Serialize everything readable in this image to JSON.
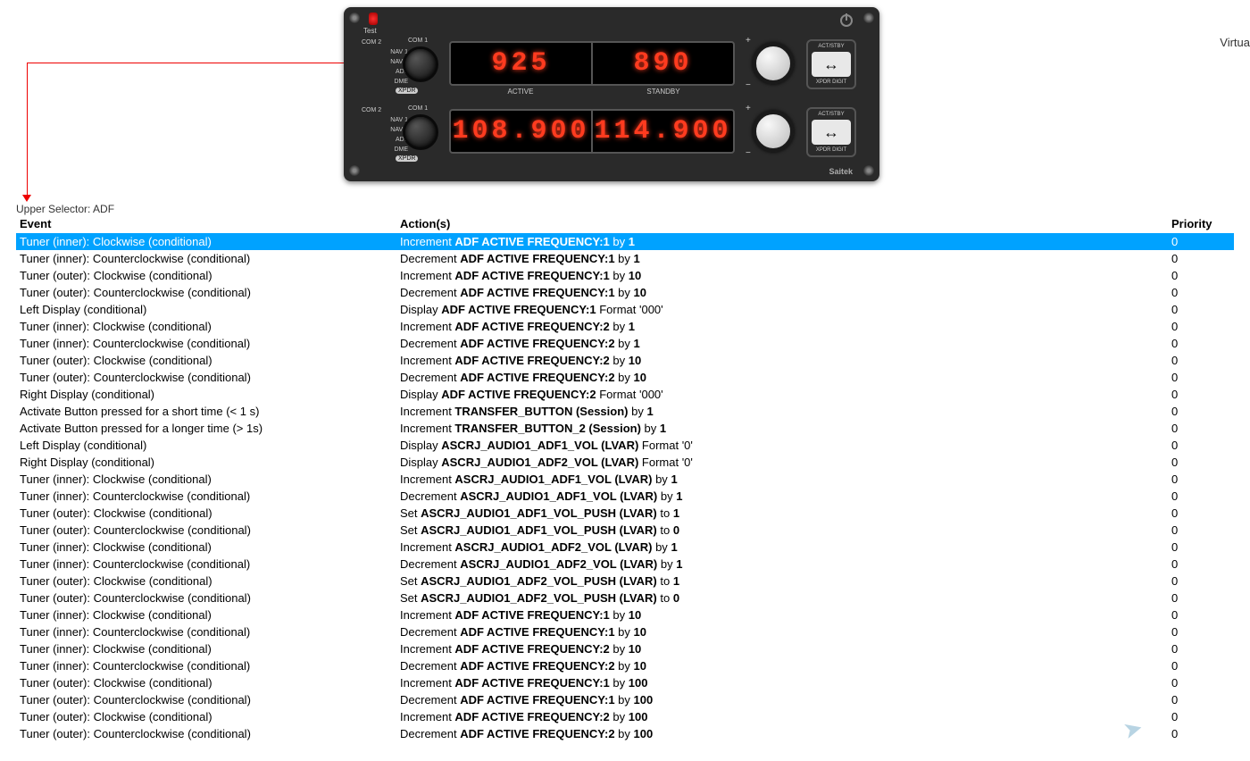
{
  "corner_label": "Virtua",
  "panel": {
    "test": "Test",
    "brand": "Saitek",
    "row1": {
      "left_labels": [
        "COM 2",
        "NAV 1",
        "NAV 2",
        "ADF",
        "DME"
      ],
      "right_labels": [
        "COM 1"
      ],
      "badge": "XPDR",
      "left_value": "925",
      "right_value": "890",
      "active": "ACTIVE",
      "standby": "STANDBY",
      "btn_top": "ACT/STBY",
      "btn_bot": "XPDR DIGIT",
      "btn_sym": "↔"
    },
    "row2": {
      "left_labels": [
        "COM 2",
        "NAV 1",
        "NAV 2",
        "ADF",
        "DME"
      ],
      "right_labels": [
        "COM 1"
      ],
      "badge": "XPDR",
      "left_value": "108.900",
      "right_value": "114.900",
      "btn_top": "ACT/STBY",
      "btn_bot": "XPDR DIGIT",
      "btn_sym": "↔"
    }
  },
  "caption": "Upper Selector: ADF",
  "headers": {
    "event": "Event",
    "actions": "Action(s)",
    "priority": "Priority"
  },
  "rows": [
    {
      "sel": true,
      "ev": "Tuner (inner): Clockwise (conditional)",
      "verb": "Increment",
      "obj": "ADF ACTIVE FREQUENCY:1",
      "tail": " by ",
      "val": "1",
      "pr": "0"
    },
    {
      "ev": "Tuner (inner): Counterclockwise (conditional)",
      "verb": "Decrement",
      "obj": "ADF ACTIVE FREQUENCY:1",
      "tail": " by ",
      "val": "1",
      "pr": "0"
    },
    {
      "ev": "Tuner (outer): Clockwise (conditional)",
      "verb": "Increment",
      "obj": "ADF ACTIVE FREQUENCY:1",
      "tail": " by ",
      "val": "10",
      "pr": "0"
    },
    {
      "ev": "Tuner (outer): Counterclockwise (conditional)",
      "verb": "Decrement",
      "obj": "ADF ACTIVE FREQUENCY:1",
      "tail": " by ",
      "val": "10",
      "pr": "0"
    },
    {
      "ev": "Left Display (conditional)",
      "verb": "Display",
      "obj": "ADF ACTIVE FREQUENCY:1",
      "tail": " Format '000'",
      "val": "",
      "pr": "0"
    },
    {
      "ev": "Tuner (inner): Clockwise (conditional)",
      "verb": "Increment",
      "obj": "ADF ACTIVE FREQUENCY:2",
      "tail": " by ",
      "val": "1",
      "pr": "0"
    },
    {
      "ev": "Tuner (inner): Counterclockwise (conditional)",
      "verb": "Decrement",
      "obj": "ADF ACTIVE FREQUENCY:2",
      "tail": " by ",
      "val": "1",
      "pr": "0"
    },
    {
      "ev": "Tuner (outer): Clockwise (conditional)",
      "verb": "Increment",
      "obj": "ADF ACTIVE FREQUENCY:2",
      "tail": " by ",
      "val": "10",
      "pr": "0"
    },
    {
      "ev": "Tuner (outer): Counterclockwise (conditional)",
      "verb": "Decrement",
      "obj": "ADF ACTIVE FREQUENCY:2",
      "tail": " by ",
      "val": "10",
      "pr": "0"
    },
    {
      "ev": "Right Display (conditional)",
      "verb": "Display",
      "obj": "ADF ACTIVE FREQUENCY:2",
      "tail": " Format '000'",
      "val": "",
      "pr": "0"
    },
    {
      "ev": "Activate Button pressed for a short time (< 1 s)",
      "verb": "Increment",
      "obj": "TRANSFER_BUTTON (Session)",
      "tail": " by ",
      "val": "1",
      "pr": "0"
    },
    {
      "ev": "Activate Button pressed for a longer time (> 1s)",
      "verb": "Increment",
      "obj": "TRANSFER_BUTTON_2 (Session)",
      "tail": " by ",
      "val": "1",
      "pr": "0"
    },
    {
      "ev": "Left Display (conditional)",
      "verb": "Display",
      "obj": "ASCRJ_AUDIO1_ADF1_VOL (LVAR)",
      "tail": " Format '0'",
      "val": "",
      "pr": "0"
    },
    {
      "ev": "Right Display (conditional)",
      "verb": "Display",
      "obj": "ASCRJ_AUDIO1_ADF2_VOL (LVAR)",
      "tail": " Format '0'",
      "val": "",
      "pr": "0"
    },
    {
      "ev": "Tuner (inner): Clockwise (conditional)",
      "verb": "Increment",
      "obj": "ASCRJ_AUDIO1_ADF1_VOL (LVAR)",
      "tail": " by ",
      "val": "1",
      "pr": "0"
    },
    {
      "ev": "Tuner (inner): Counterclockwise (conditional)",
      "verb": "Decrement",
      "obj": "ASCRJ_AUDIO1_ADF1_VOL (LVAR)",
      "tail": " by ",
      "val": "1",
      "pr": "0"
    },
    {
      "ev": "Tuner (outer): Clockwise (conditional)",
      "verb": "Set",
      "obj": "ASCRJ_AUDIO1_ADF1_VOL_PUSH (LVAR)",
      "tail": " to ",
      "val": "1",
      "pr": "0"
    },
    {
      "ev": "Tuner (outer): Counterclockwise (conditional)",
      "verb": "Set",
      "obj": "ASCRJ_AUDIO1_ADF1_VOL_PUSH (LVAR)",
      "tail": " to ",
      "val": "0",
      "pr": "0"
    },
    {
      "ev": "Tuner (inner): Clockwise (conditional)",
      "verb": "Increment",
      "obj": "ASCRJ_AUDIO1_ADF2_VOL (LVAR)",
      "tail": " by ",
      "val": "1",
      "pr": "0"
    },
    {
      "ev": "Tuner (inner): Counterclockwise (conditional)",
      "verb": "Decrement",
      "obj": "ASCRJ_AUDIO1_ADF2_VOL (LVAR)",
      "tail": " by ",
      "val": "1",
      "pr": "0"
    },
    {
      "ev": "Tuner (outer): Clockwise (conditional)",
      "verb": "Set",
      "obj": "ASCRJ_AUDIO1_ADF2_VOL_PUSH (LVAR)",
      "tail": " to ",
      "val": "1",
      "pr": "0"
    },
    {
      "ev": "Tuner (outer): Counterclockwise (conditional)",
      "verb": "Set",
      "obj": "ASCRJ_AUDIO1_ADF2_VOL_PUSH (LVAR)",
      "tail": " to ",
      "val": "0",
      "pr": "0"
    },
    {
      "ev": "Tuner (inner): Clockwise (conditional)",
      "verb": "Increment",
      "obj": "ADF ACTIVE FREQUENCY:1",
      "tail": " by ",
      "val": "10",
      "pr": "0"
    },
    {
      "ev": "Tuner (inner): Counterclockwise (conditional)",
      "verb": "Decrement",
      "obj": "ADF ACTIVE FREQUENCY:1",
      "tail": " by ",
      "val": "10",
      "pr": "0"
    },
    {
      "ev": "Tuner (inner): Clockwise (conditional)",
      "verb": "Increment",
      "obj": "ADF ACTIVE FREQUENCY:2",
      "tail": " by ",
      "val": "10",
      "pr": "0"
    },
    {
      "ev": "Tuner (inner): Counterclockwise (conditional)",
      "verb": "Decrement",
      "obj": "ADF ACTIVE FREQUENCY:2",
      "tail": " by ",
      "val": "10",
      "pr": "0"
    },
    {
      "ev": "Tuner (outer): Clockwise (conditional)",
      "verb": "Increment",
      "obj": "ADF ACTIVE FREQUENCY:1",
      "tail": " by ",
      "val": "100",
      "pr": "0"
    },
    {
      "ev": "Tuner (outer): Counterclockwise (conditional)",
      "verb": "Decrement",
      "obj": "ADF ACTIVE FREQUENCY:1",
      "tail": " by ",
      "val": "100",
      "pr": "0"
    },
    {
      "ev": "Tuner (outer): Clockwise (conditional)",
      "verb": "Increment",
      "obj": "ADF ACTIVE FREQUENCY:2",
      "tail": " by ",
      "val": "100",
      "pr": "0"
    },
    {
      "ev": "Tuner (outer): Counterclockwise (conditional)",
      "verb": "Decrement",
      "obj": "ADF ACTIVE FREQUENCY:2",
      "tail": " by ",
      "val": "100",
      "pr": "0"
    }
  ]
}
